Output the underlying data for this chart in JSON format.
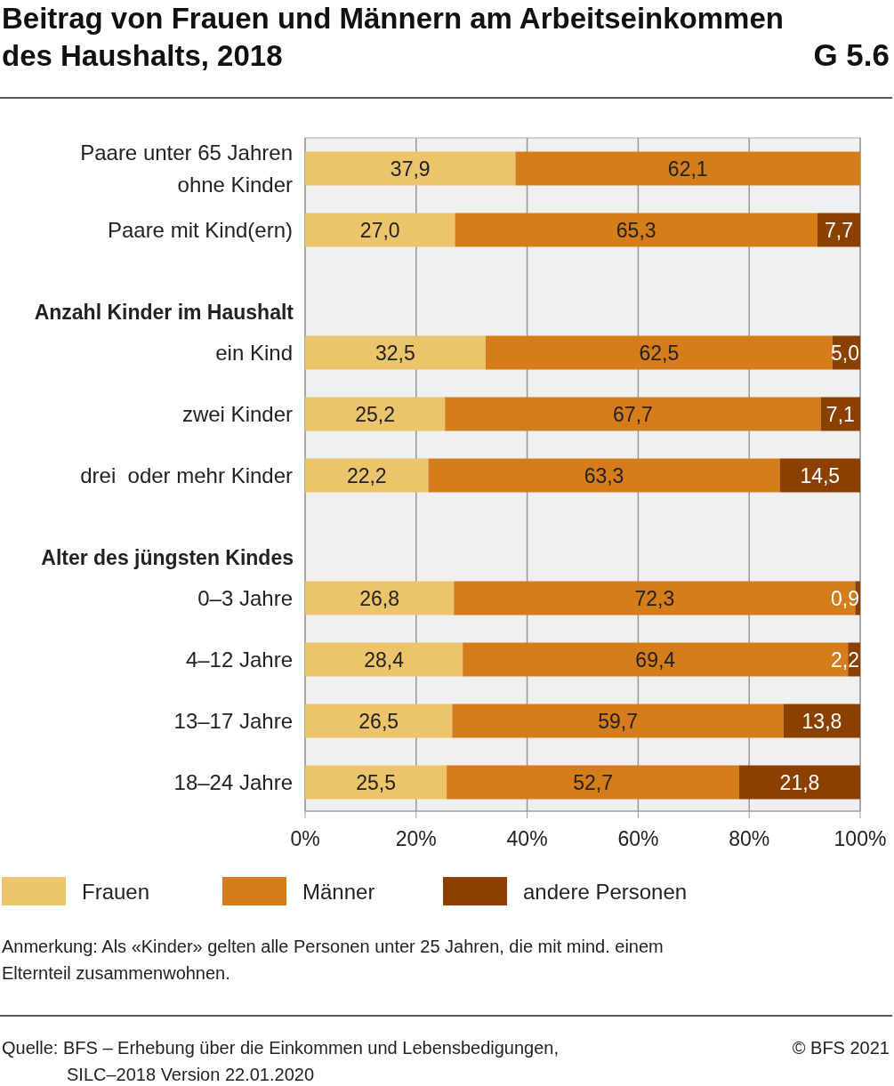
{
  "chart_data": {
    "type": "bar",
    "orientation": "horizontal",
    "stacked": true,
    "title": "Beitrag von Frauen und Männern am Arbeitseinkommen des Haushalts, 2018",
    "categories": [
      "Paare unter 65 Jahren ohne Kinder",
      "Paare mit Kind(ern)",
      "Anzahl Kinder im Haushalt",
      "ein Kind",
      "zwei Kinder",
      "drei  oder mehr Kinder",
      "Alter des jüngsten Kindes",
      "0–3 Jahre",
      "4–12 Jahre",
      "13–17 Jahre",
      "18–24 Jahre"
    ],
    "series": [
      {
        "name": "Frauen",
        "color": "#ecc46c",
        "values": [
          37.9,
          27.0,
          null,
          32.5,
          25.2,
          22.2,
          null,
          26.8,
          28.4,
          26.5,
          25.5
        ],
        "value_labels": [
          "37,9",
          "27,0",
          null,
          "32,5",
          "25,2",
          "22,2",
          null,
          "26,8",
          "28,4",
          "26,5",
          "25,5"
        ]
      },
      {
        "name": "Männer",
        "color": "#d47d1a",
        "values": [
          62.1,
          65.3,
          null,
          62.5,
          67.7,
          63.3,
          null,
          72.3,
          69.4,
          59.7,
          52.7
        ],
        "value_labels": [
          "62,1",
          "65,3",
          null,
          "62,5",
          "67,7",
          "63,3",
          null,
          "72,3",
          "69,4",
          "59,7",
          "52,7"
        ]
      },
      {
        "name": "andere Personen",
        "color": "#8b4000",
        "values": [
          null,
          7.7,
          null,
          5.0,
          7.1,
          14.5,
          null,
          0.9,
          2.2,
          13.8,
          21.8
        ],
        "value_labels": [
          null,
          "7,7",
          null,
          "5,0",
          "7,1",
          "14,5",
          null,
          "0,9",
          "2,2",
          "13,8",
          "21,8"
        ]
      }
    ],
    "xlim": [
      0,
      100
    ],
    "xticks": [
      {
        "value": 0,
        "label": "0%"
      },
      {
        "value": 20,
        "label": "20%"
      },
      {
        "value": 40,
        "label": "40%"
      },
      {
        "value": 60,
        "label": "60%"
      },
      {
        "value": 80,
        "label": "80%"
      },
      {
        "value": 100,
        "label": "100%"
      }
    ],
    "grid": "x",
    "legend": "bottom",
    "annotations": [
      "G 5.6",
      "Anmerkung: Als «Kinder» gelten alle Personen unter 25 Jahren, die mit mind. einem Elternteil zusammenwohnen.",
      "Quelle: BFS – Erhebung über die Einkommen und Lebensbedigungen, SILC–2018 Version 22.01.2020",
      "© BFS 2021"
    ]
  }
}
